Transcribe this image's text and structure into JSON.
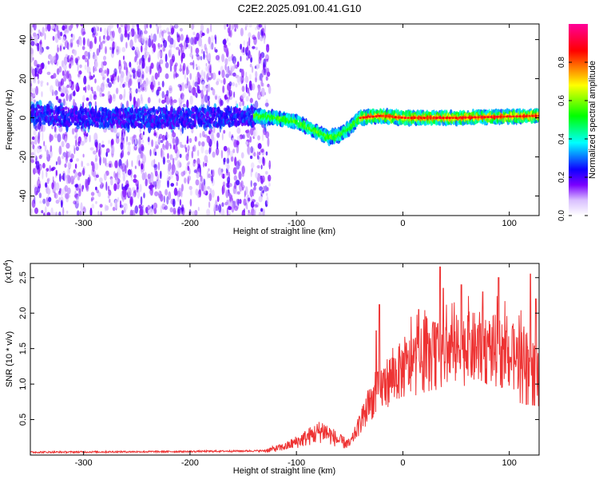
{
  "title": "C2E2.2025.091.00.41.G10",
  "chart_data": [
    {
      "type": "heatmap",
      "xlabel": "Height of straight line (km)",
      "ylabel": "Frequency (Hz)",
      "xlim": [
        -350,
        128
      ],
      "ylim": [
        -50,
        48
      ],
      "xticks": [
        -300,
        -200,
        -100,
        0,
        100
      ],
      "xtick_labels": [
        "-300",
        "-200",
        "-100",
        "0",
        "100"
      ],
      "yticks": [
        -40,
        -20,
        0,
        20,
        40
      ],
      "ytick_labels": [
        "-40",
        "-20",
        "0",
        "20",
        "40"
      ],
      "colorbar": {
        "label": "Normalized spectral amplitude",
        "range": [
          0,
          1
        ],
        "ticks": [
          0.0,
          0.2,
          0.4,
          0.6,
          0.8
        ],
        "tick_labels": [
          "0.0",
          "0.2",
          "0.4",
          "0.6",
          "0.8"
        ],
        "colors": [
          "#ffffff",
          "#c89bff",
          "#5a00ff",
          "#0000ff",
          "#00ffff",
          "#00ff00",
          "#ffff00",
          "#ff0000",
          "#ff00aa"
        ]
      },
      "signal_track": [
        [
          -350,
          2
        ],
        [
          -300,
          0
        ],
        [
          -200,
          0
        ],
        [
          -140,
          1
        ],
        [
          -120,
          0
        ],
        [
          -100,
          -2
        ],
        [
          -85,
          -6
        ],
        [
          -70,
          -10
        ],
        [
          -60,
          -9
        ],
        [
          -50,
          -5
        ],
        [
          -40,
          0
        ],
        [
          -20,
          1
        ],
        [
          0,
          0
        ],
        [
          50,
          0
        ],
        [
          128,
          1
        ]
      ],
      "noise_extent_km": -135,
      "grid": false
    },
    {
      "type": "line",
      "xlabel": "Height of straight line (km)",
      "ylabel": "SNR (10 * v/v)",
      "y_multiplier": "(x10",
      "y_multiplier_exp": "4",
      "xlim": [
        -350,
        128
      ],
      "ylim": [
        0,
        2.7
      ],
      "xticks": [
        -300,
        -200,
        -100,
        0,
        100
      ],
      "xtick_labels": [
        "-300",
        "-200",
        "-100",
        "0",
        "100"
      ],
      "yticks": [
        0.5,
        1.0,
        1.5,
        2.0,
        2.5
      ],
      "ytick_labels": [
        "0.5",
        "1.0",
        "1.5",
        "2.0",
        "2.5"
      ],
      "line_color": "#ee3333",
      "envelope": [
        [
          -350,
          0.04
        ],
        [
          -200,
          0.05
        ],
        [
          -130,
          0.06
        ],
        [
          -110,
          0.12
        ],
        [
          -90,
          0.25
        ],
        [
          -75,
          0.35
        ],
        [
          -60,
          0.2
        ],
        [
          -50,
          0.15
        ],
        [
          -40,
          0.45
        ],
        [
          -30,
          0.75
        ],
        [
          -20,
          0.95
        ],
        [
          -10,
          1.1
        ],
        [
          0,
          1.2
        ],
        [
          20,
          1.35
        ],
        [
          40,
          1.45
        ],
        [
          60,
          1.5
        ],
        [
          80,
          1.5
        ],
        [
          100,
          1.4
        ],
        [
          115,
          1.3
        ],
        [
          128,
          1.25
        ]
      ],
      "peaks": [
        [
          -22,
          2.12
        ],
        [
          -25,
          1.75
        ],
        [
          15,
          2.05
        ],
        [
          22,
          1.95
        ],
        [
          35,
          2.65
        ],
        [
          38,
          2.35
        ],
        [
          55,
          2.4
        ],
        [
          75,
          2.3
        ],
        [
          90,
          2.5
        ],
        [
          120,
          2.55
        ],
        [
          125,
          2.2
        ]
      ],
      "grid": false
    }
  ]
}
